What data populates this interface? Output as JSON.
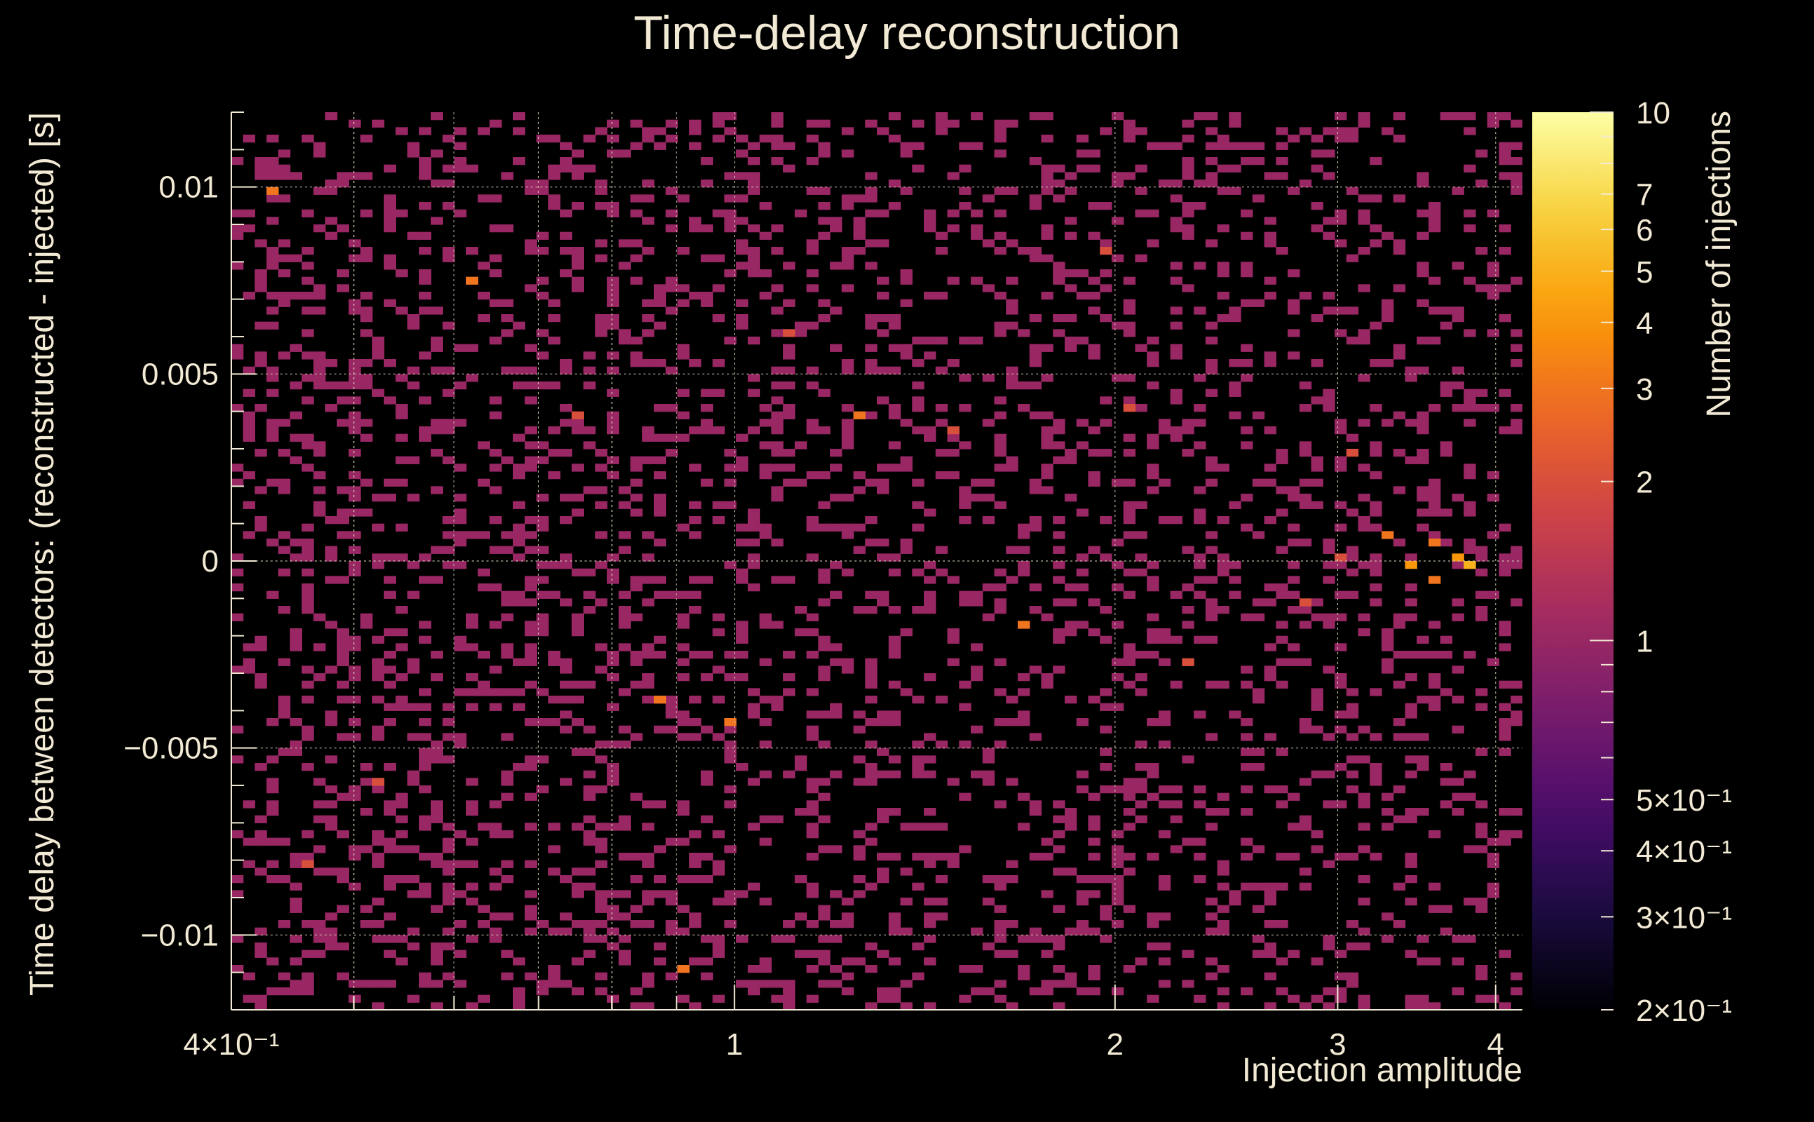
{
  "chart_data": {
    "type": "heatmap",
    "title": "Time-delay reconstruction",
    "xlabel": "Injection amplitude",
    "ylabel": "Time delay between detectors: (reconstructed - injected) [s]",
    "zlabel": "Number of injections",
    "x_scale": "log",
    "z_scale": "log",
    "xlim": [
      0.4,
      4.2
    ],
    "ylim": [
      -0.012,
      0.012
    ],
    "zlim": [
      0.2,
      10
    ],
    "x_ticks": [
      {
        "value": 0.4,
        "label": "4×10⁻¹"
      },
      {
        "value": 1,
        "label": "1"
      },
      {
        "value": 2,
        "label": "2"
      },
      {
        "value": 3,
        "label": "3"
      },
      {
        "value": 4,
        "label": "4"
      }
    ],
    "y_ticks": [
      {
        "value": 0.01,
        "label": "0.01"
      },
      {
        "value": 0.005,
        "label": "0.005"
      },
      {
        "value": 0,
        "label": "0"
      },
      {
        "value": -0.005,
        "label": "−0.005"
      },
      {
        "value": -0.01,
        "label": "−0.01"
      }
    ],
    "z_ticks": [
      {
        "value": 10,
        "label": "10"
      },
      {
        "value": 7,
        "label": "7"
      },
      {
        "value": 6,
        "label": "6"
      },
      {
        "value": 5,
        "label": "5"
      },
      {
        "value": 4,
        "label": "4"
      },
      {
        "value": 3,
        "label": "3"
      },
      {
        "value": 2,
        "label": "2"
      },
      {
        "value": 1,
        "label": "1"
      },
      {
        "value": 0.5,
        "label": "5×10⁻¹"
      },
      {
        "value": 0.4,
        "label": "4×10⁻¹"
      },
      {
        "value": 0.3,
        "label": "3×10⁻¹"
      },
      {
        "value": 0.2,
        "label": "2×10⁻¹"
      }
    ],
    "grid": true,
    "colormap": [
      "#000004",
      "#1b0c41",
      "#4a0c6b",
      "#781c6d",
      "#a52c60",
      "#cf4446",
      "#ed6925",
      "#fb9b06",
      "#f7d13d",
      "#fcffa4"
    ],
    "colorbar": "right",
    "bins": {
      "x_bins": 110,
      "y_bins": 120,
      "background_count": 1,
      "hot_cells": [
        {
          "x": 3.85,
          "y": 0.0,
          "count": 5
        },
        {
          "x": 3.7,
          "y": 0.0002,
          "count": 4
        },
        {
          "x": 3.4,
          "y": 0.0,
          "count": 4
        },
        {
          "x": 3.6,
          "y": -0.0004,
          "count": 3
        },
        {
          "x": 3.55,
          "y": 0.0006,
          "count": 3
        },
        {
          "x": 3.25,
          "y": 0.0008,
          "count": 3
        },
        {
          "x": 3.0,
          "y": 0.0002,
          "count": 2
        },
        {
          "x": 2.8,
          "y": -0.001,
          "count": 2
        },
        {
          "x": 0.43,
          "y": 0.01,
          "count": 3
        },
        {
          "x": 0.62,
          "y": 0.0075,
          "count": 3
        },
        {
          "x": 0.88,
          "y": -0.0036,
          "count": 3
        },
        {
          "x": 0.91,
          "y": -0.011,
          "count": 3
        },
        {
          "x": 1.25,
          "y": 0.004,
          "count": 3
        },
        {
          "x": 1.7,
          "y": -0.0016,
          "count": 3
        },
        {
          "x": 1.95,
          "y": 0.0084,
          "count": 2
        },
        {
          "x": 3.1,
          "y": 0.003,
          "count": 2
        },
        {
          "x": 1.0,
          "y": -0.0042,
          "count": 3
        },
        {
          "x": 0.52,
          "y": -0.0058,
          "count": 2
        },
        {
          "x": 0.46,
          "y": -0.008,
          "count": 2
        },
        {
          "x": 1.1,
          "y": 0.006,
          "count": 2
        },
        {
          "x": 2.3,
          "y": -0.0026,
          "count": 2
        },
        {
          "x": 0.75,
          "y": 0.004,
          "count": 2
        },
        {
          "x": 1.5,
          "y": 0.0035,
          "count": 2
        },
        {
          "x": 2.05,
          "y": 0.0042,
          "count": 2
        }
      ]
    }
  }
}
